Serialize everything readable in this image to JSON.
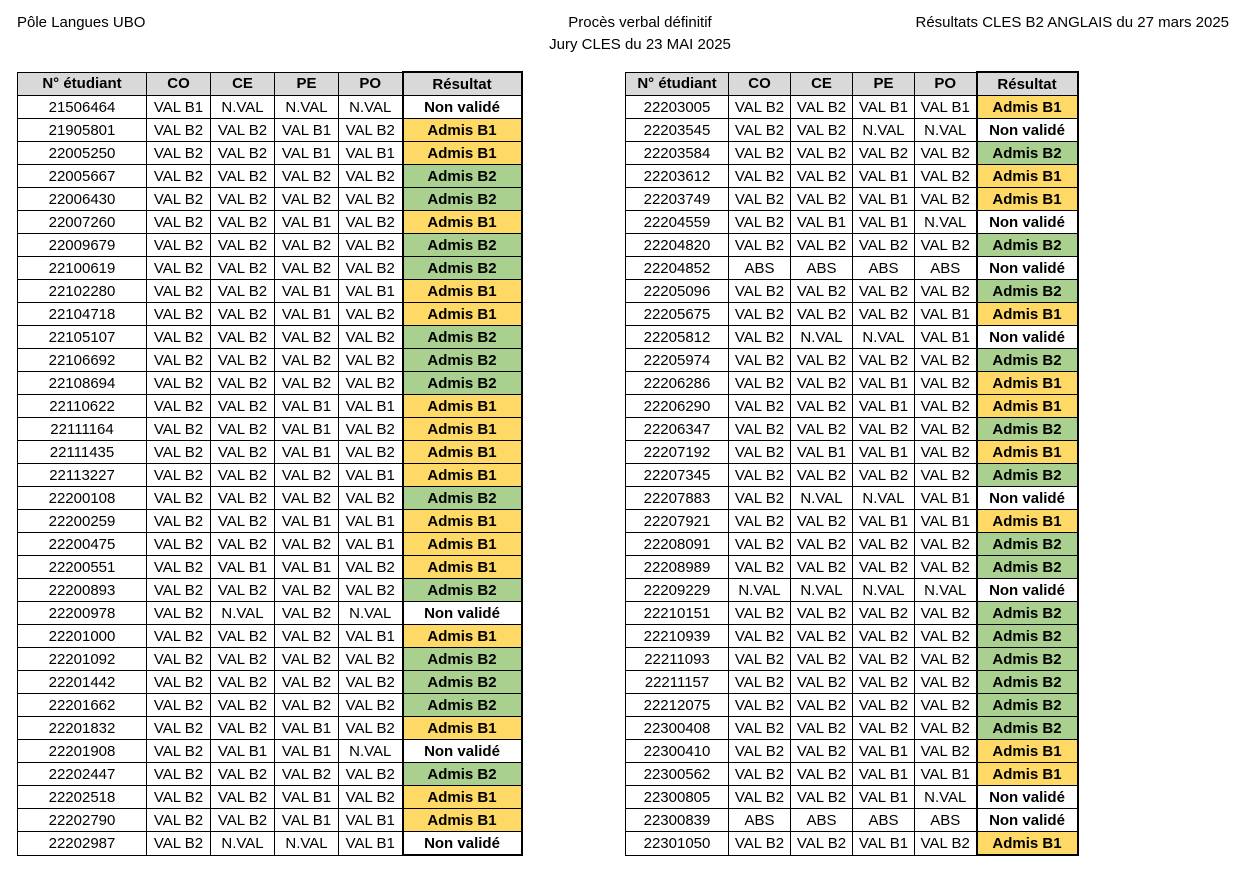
{
  "header": {
    "left": "Pôle Langues UBO",
    "center_line1": "Procès verbal définitif",
    "center_line2": "Jury CLES du 23 MAI 2025",
    "right": "Résultats CLES B2 ANGLAIS du 27 mars 2025"
  },
  "columns": [
    "N° étudiant",
    "CO",
    "CE",
    "PE",
    "PO",
    "Résultat"
  ],
  "colors": {
    "admis_b1": "#ffd966",
    "admis_b2": "#a9d08e",
    "non_valide": "#ffffff",
    "header_bg": "#d9d9d9"
  },
  "left_rows": [
    [
      "21506464",
      "VAL B1",
      "N.VAL",
      "N.VAL",
      "N.VAL",
      "Non validé"
    ],
    [
      "21905801",
      "VAL B2",
      "VAL B2",
      "VAL B1",
      "VAL B2",
      "Admis B1"
    ],
    [
      "22005250",
      "VAL B2",
      "VAL B2",
      "VAL B1",
      "VAL B1",
      "Admis B1"
    ],
    [
      "22005667",
      "VAL B2",
      "VAL B2",
      "VAL B2",
      "VAL B2",
      "Admis B2"
    ],
    [
      "22006430",
      "VAL B2",
      "VAL B2",
      "VAL B2",
      "VAL B2",
      "Admis B2"
    ],
    [
      "22007260",
      "VAL B2",
      "VAL B2",
      "VAL B1",
      "VAL B2",
      "Admis B1"
    ],
    [
      "22009679",
      "VAL B2",
      "VAL B2",
      "VAL B2",
      "VAL B2",
      "Admis B2"
    ],
    [
      "22100619",
      "VAL B2",
      "VAL B2",
      "VAL B2",
      "VAL B2",
      "Admis B2"
    ],
    [
      "22102280",
      "VAL B2",
      "VAL B2",
      "VAL B1",
      "VAL B1",
      "Admis B1"
    ],
    [
      "22104718",
      "VAL B2",
      "VAL B2",
      "VAL B1",
      "VAL B2",
      "Admis B1"
    ],
    [
      "22105107",
      "VAL B2",
      "VAL B2",
      "VAL B2",
      "VAL B2",
      "Admis B2"
    ],
    [
      "22106692",
      "VAL B2",
      "VAL B2",
      "VAL B2",
      "VAL B2",
      "Admis B2"
    ],
    [
      "22108694",
      "VAL B2",
      "VAL B2",
      "VAL B2",
      "VAL B2",
      "Admis B2"
    ],
    [
      "22110622",
      "VAL B2",
      "VAL B2",
      "VAL B1",
      "VAL B1",
      "Admis B1"
    ],
    [
      "22111164",
      "VAL B2",
      "VAL B2",
      "VAL B1",
      "VAL B2",
      "Admis B1"
    ],
    [
      "22111435",
      "VAL B2",
      "VAL B2",
      "VAL B1",
      "VAL B2",
      "Admis B1"
    ],
    [
      "22113227",
      "VAL B2",
      "VAL B2",
      "VAL B2",
      "VAL B1",
      "Admis B1"
    ],
    [
      "22200108",
      "VAL B2",
      "VAL B2",
      "VAL B2",
      "VAL B2",
      "Admis B2"
    ],
    [
      "22200259",
      "VAL B2",
      "VAL B2",
      "VAL B1",
      "VAL B1",
      "Admis B1"
    ],
    [
      "22200475",
      "VAL B2",
      "VAL B2",
      "VAL B2",
      "VAL B1",
      "Admis B1"
    ],
    [
      "22200551",
      "VAL B2",
      "VAL B1",
      "VAL B1",
      "VAL B2",
      "Admis B1"
    ],
    [
      "22200893",
      "VAL B2",
      "VAL B2",
      "VAL B2",
      "VAL B2",
      "Admis B2"
    ],
    [
      "22200978",
      "VAL B2",
      "N.VAL",
      "VAL B2",
      "N.VAL",
      "Non validé"
    ],
    [
      "22201000",
      "VAL B2",
      "VAL B2",
      "VAL B2",
      "VAL B1",
      "Admis B1"
    ],
    [
      "22201092",
      "VAL B2",
      "VAL B2",
      "VAL B2",
      "VAL B2",
      "Admis B2"
    ],
    [
      "22201442",
      "VAL B2",
      "VAL B2",
      "VAL B2",
      "VAL B2",
      "Admis B2"
    ],
    [
      "22201662",
      "VAL B2",
      "VAL B2",
      "VAL B2",
      "VAL B2",
      "Admis B2"
    ],
    [
      "22201832",
      "VAL B2",
      "VAL B2",
      "VAL B1",
      "VAL B2",
      "Admis B1"
    ],
    [
      "22201908",
      "VAL B2",
      "VAL B1",
      "VAL B1",
      "N.VAL",
      "Non validé"
    ],
    [
      "22202447",
      "VAL B2",
      "VAL B2",
      "VAL B2",
      "VAL B2",
      "Admis B2"
    ],
    [
      "22202518",
      "VAL B2",
      "VAL B2",
      "VAL B1",
      "VAL B2",
      "Admis B1"
    ],
    [
      "22202790",
      "VAL B2",
      "VAL B2",
      "VAL B1",
      "VAL B1",
      "Admis B1"
    ],
    [
      "22202987",
      "VAL B2",
      "N.VAL",
      "N.VAL",
      "VAL B1",
      "Non validé"
    ]
  ],
  "right_rows": [
    [
      "22203005",
      "VAL B2",
      "VAL B2",
      "VAL B1",
      "VAL B1",
      "Admis B1"
    ],
    [
      "22203545",
      "VAL B2",
      "VAL B2",
      "N.VAL",
      "N.VAL",
      "Non validé"
    ],
    [
      "22203584",
      "VAL B2",
      "VAL B2",
      "VAL B2",
      "VAL B2",
      "Admis B2"
    ],
    [
      "22203612",
      "VAL B2",
      "VAL B2",
      "VAL B1",
      "VAL B2",
      "Admis B1"
    ],
    [
      "22203749",
      "VAL B2",
      "VAL B2",
      "VAL B1",
      "VAL B2",
      "Admis B1"
    ],
    [
      "22204559",
      "VAL B2",
      "VAL B1",
      "VAL B1",
      "N.VAL",
      "Non validé"
    ],
    [
      "22204820",
      "VAL B2",
      "VAL B2",
      "VAL B2",
      "VAL B2",
      "Admis B2"
    ],
    [
      "22204852",
      "ABS",
      "ABS",
      "ABS",
      "ABS",
      "Non validé"
    ],
    [
      "22205096",
      "VAL B2",
      "VAL B2",
      "VAL B2",
      "VAL B2",
      "Admis B2"
    ],
    [
      "22205675",
      "VAL B2",
      "VAL B2",
      "VAL B2",
      "VAL B1",
      "Admis B1"
    ],
    [
      "22205812",
      "VAL B2",
      "N.VAL",
      "N.VAL",
      "VAL B1",
      "Non validé"
    ],
    [
      "22205974",
      "VAL B2",
      "VAL B2",
      "VAL B2",
      "VAL B2",
      "Admis B2"
    ],
    [
      "22206286",
      "VAL B2",
      "VAL B2",
      "VAL B1",
      "VAL B2",
      "Admis B1"
    ],
    [
      "22206290",
      "VAL B2",
      "VAL B2",
      "VAL B1",
      "VAL B2",
      "Admis B1"
    ],
    [
      "22206347",
      "VAL B2",
      "VAL B2",
      "VAL B2",
      "VAL B2",
      "Admis B2"
    ],
    [
      "22207192",
      "VAL B2",
      "VAL B1",
      "VAL B1",
      "VAL B2",
      "Admis B1"
    ],
    [
      "22207345",
      "VAL B2",
      "VAL B2",
      "VAL B2",
      "VAL B2",
      "Admis B2"
    ],
    [
      "22207883",
      "VAL B2",
      "N.VAL",
      "N.VAL",
      "VAL B1",
      "Non validé"
    ],
    [
      "22207921",
      "VAL B2",
      "VAL B2",
      "VAL B1",
      "VAL B1",
      "Admis B1"
    ],
    [
      "22208091",
      "VAL B2",
      "VAL B2",
      "VAL B2",
      "VAL B2",
      "Admis B2"
    ],
    [
      "22208989",
      "VAL B2",
      "VAL B2",
      "VAL B2",
      "VAL B2",
      "Admis B2"
    ],
    [
      "22209229",
      "N.VAL",
      "N.VAL",
      "N.VAL",
      "N.VAL",
      "Non validé"
    ],
    [
      "22210151",
      "VAL B2",
      "VAL B2",
      "VAL B2",
      "VAL B2",
      "Admis B2"
    ],
    [
      "22210939",
      "VAL B2",
      "VAL B2",
      "VAL B2",
      "VAL B2",
      "Admis B2"
    ],
    [
      "22211093",
      "VAL B2",
      "VAL B2",
      "VAL B2",
      "VAL B2",
      "Admis B2"
    ],
    [
      "22211157",
      "VAL B2",
      "VAL B2",
      "VAL B2",
      "VAL B2",
      "Admis B2"
    ],
    [
      "22212075",
      "VAL B2",
      "VAL B2",
      "VAL B2",
      "VAL B2",
      "Admis B2"
    ],
    [
      "22300408",
      "VAL B2",
      "VAL B2",
      "VAL B2",
      "VAL B2",
      "Admis B2"
    ],
    [
      "22300410",
      "VAL B2",
      "VAL B2",
      "VAL B1",
      "VAL B2",
      "Admis B1"
    ],
    [
      "22300562",
      "VAL B2",
      "VAL B2",
      "VAL B1",
      "VAL B1",
      "Admis B1"
    ],
    [
      "22300805",
      "VAL B2",
      "VAL B2",
      "VAL B1",
      "N.VAL",
      "Non validé"
    ],
    [
      "22300839",
      "ABS",
      "ABS",
      "ABS",
      "ABS",
      "Non validé"
    ],
    [
      "22301050",
      "VAL B2",
      "VAL B2",
      "VAL B1",
      "VAL B2",
      "Admis B1"
    ]
  ]
}
